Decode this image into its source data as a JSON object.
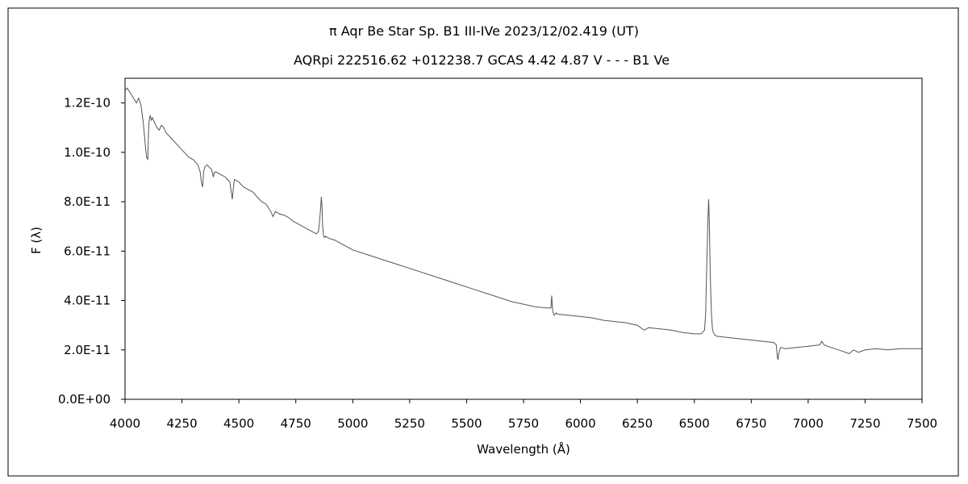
{
  "chart_data": {
    "type": "line",
    "title": "π  Aqr    Be Star    Sp. B1 III-IVe    2023/12/02.419 (UT)",
    "subtitle": "AQRpi 222516.62 +012238.7 GCAS 4.42 4.87 V - - - B1 Ve",
    "xlabel": "Wavelength (Å)",
    "ylabel": "F (λ)",
    "xlim": [
      4000,
      7500
    ],
    "ylim": [
      0,
      1.3e-10
    ],
    "x_ticks": [
      4000,
      4250,
      4500,
      4750,
      5000,
      5250,
      5500,
      5750,
      6000,
      6250,
      6500,
      6750,
      7000,
      7250,
      7500
    ],
    "x_tick_labels": [
      "4000",
      "4250",
      "4500",
      "4750",
      "5000",
      "5250",
      "5500",
      "5750",
      "6000",
      "6250",
      "6500",
      "6750",
      "7000",
      "7250",
      "7500"
    ],
    "y_ticks": [
      0,
      2e-11,
      4e-11,
      6e-11,
      8e-11,
      1e-10,
      1.2e-10
    ],
    "y_tick_labels": [
      "0.0E+00",
      "2.0E-11",
      "4.0E-11",
      "6.0E-11",
      "8.0E-11",
      "1.0E-10",
      "1.2E-10"
    ],
    "grid": false,
    "series": [
      {
        "color": "#555555",
        "x": [
          4000,
          4010,
          4030,
          4050,
          4060,
          4070,
          4080,
          4090,
          4095,
          4100,
          4102,
          4105,
          4110,
          4115,
          4120,
          4130,
          4140,
          4150,
          4160,
          4170,
          4180,
          4200,
          4220,
          4240,
          4260,
          4280,
          4300,
          4320,
          4330,
          4335,
          4340,
          4342,
          4345,
          4350,
          4360,
          4380,
          4388,
          4392,
          4400,
          4420,
          4440,
          4460,
          4471,
          4474,
          4480,
          4500,
          4520,
          4540,
          4560,
          4580,
          4600,
          4620,
          4640,
          4650,
          4660,
          4680,
          4700,
          4720,
          4740,
          4760,
          4780,
          4800,
          4820,
          4840,
          4850,
          4855,
          4860,
          4862,
          4865,
          4868,
          4872,
          4876,
          4880,
          4900,
          4920,
          4940,
          4960,
          4980,
          5000,
          5050,
          5100,
          5150,
          5200,
          5250,
          5300,
          5350,
          5400,
          5450,
          5500,
          5550,
          5600,
          5650,
          5700,
          5750,
          5800,
          5850,
          5870,
          5874,
          5876,
          5878,
          5880,
          5885,
          5889,
          5893,
          5900,
          5950,
          6000,
          6050,
          6100,
          6150,
          6200,
          6250,
          6280,
          6300,
          6350,
          6400,
          6450,
          6500,
          6530,
          6545,
          6550,
          6555,
          6560,
          6563,
          6566,
          6570,
          6575,
          6580,
          6590,
          6600,
          6650,
          6700,
          6750,
          6800,
          6850,
          6860,
          6865,
          6868,
          6870,
          6875,
          6880,
          6900,
          6950,
          7000,
          7050,
          7060,
          7070,
          7100,
          7150,
          7180,
          7200,
          7220,
          7250,
          7300,
          7350,
          7400,
          7450,
          7500
        ],
        "y": [
          1.25e-10,
          1.26e-10,
          1.23e-10,
          1.2e-10,
          1.22e-10,
          1.19e-10,
          1.12e-10,
          1.02e-10,
          9.8e-11,
          9.7e-11,
          1.05e-10,
          1.12e-10,
          1.15e-10,
          1.13e-10,
          1.14e-10,
          1.12e-10,
          1.1e-10,
          1.09e-10,
          1.11e-10,
          1.1e-10,
          1.08e-10,
          1.06e-10,
          1.04e-10,
          1.02e-10,
          1e-10,
          9.8e-11,
          9.7e-11,
          9.5e-11,
          9.2e-11,
          8.8e-11,
          8.6e-11,
          8.7e-11,
          9.2e-11,
          9.4e-11,
          9.5e-11,
          9.3e-11,
          9e-11,
          9.2e-11,
          9.2e-11,
          9.1e-11,
          9e-11,
          8.8e-11,
          8.1e-11,
          8.4e-11,
          8.9e-11,
          8.8e-11,
          8.6e-11,
          8.5e-11,
          8.4e-11,
          8.2e-11,
          8e-11,
          7.9e-11,
          7.6e-11,
          7.4e-11,
          7.6e-11,
          7.5e-11,
          7.45e-11,
          7.35e-11,
          7.2e-11,
          7.1e-11,
          7e-11,
          6.9e-11,
          6.8e-11,
          6.7e-11,
          6.8e-11,
          7.3e-11,
          7.9e-11,
          8.2e-11,
          7.8e-11,
          7e-11,
          6.6e-11,
          6.55e-11,
          6.6e-11,
          6.5e-11,
          6.45e-11,
          6.35e-11,
          6.25e-11,
          6.15e-11,
          6.05e-11,
          5.9e-11,
          5.75e-11,
          5.6e-11,
          5.45e-11,
          5.3e-11,
          5.15e-11,
          5e-11,
          4.85e-11,
          4.7e-11,
          4.55e-11,
          4.4e-11,
          4.25e-11,
          4.1e-11,
          3.95e-11,
          3.85e-11,
          3.75e-11,
          3.7e-11,
          3.7e-11,
          4.2e-11,
          3.8e-11,
          3.6e-11,
          3.5e-11,
          3.4e-11,
          3.45e-11,
          3.5e-11,
          3.45e-11,
          3.4e-11,
          3.35e-11,
          3.3e-11,
          3.2e-11,
          3.15e-11,
          3.1e-11,
          3e-11,
          2.8e-11,
          2.9e-11,
          2.85e-11,
          2.8e-11,
          2.7e-11,
          2.65e-11,
          2.65e-11,
          2.8e-11,
          3.5e-11,
          5.5e-11,
          7.4e-11,
          8.1e-11,
          7.2e-11,
          5e-11,
          3.5e-11,
          2.8e-11,
          2.6e-11,
          2.55e-11,
          2.5e-11,
          2.45e-11,
          2.4e-11,
          2.35e-11,
          2.3e-11,
          2.2e-11,
          1.7e-11,
          1.6e-11,
          1.8e-11,
          2e-11,
          2.1e-11,
          2.05e-11,
          2.1e-11,
          2.15e-11,
          2.2e-11,
          2.35e-11,
          2.2e-11,
          2.1e-11,
          1.95e-11,
          1.85e-11,
          2e-11,
          1.9e-11,
          2e-11,
          2.05e-11,
          2e-11,
          2.05e-11,
          2.05e-11,
          2.05e-11
        ]
      }
    ]
  }
}
